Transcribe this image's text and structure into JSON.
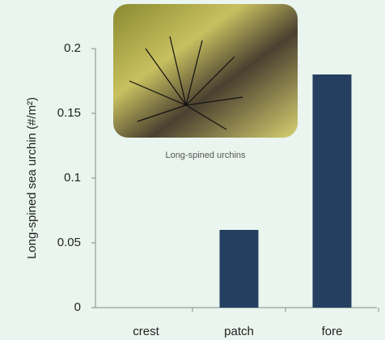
{
  "chart_data": {
    "type": "bar",
    "ylabel": "Long-spined sea urchin (#/m²)",
    "image_caption": "Long-spined urchins",
    "categories": [
      "crest",
      "patch",
      "fore"
    ],
    "values": [
      0,
      0.06,
      0.18
    ],
    "color": "#243f60",
    "ylim": [
      0,
      0.2
    ],
    "yticks": [
      0,
      0.05,
      0.1,
      0.15,
      0.2
    ],
    "grid": false
  }
}
